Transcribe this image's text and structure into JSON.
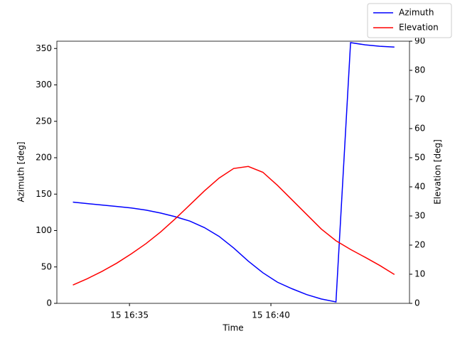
{
  "chart_data": {
    "type": "line",
    "xlabel": "Time",
    "ylabel": "Azimuth [deg]",
    "y2label": "Elevation [deg]",
    "x": [
      "15 16:33:00",
      "15 16:33:31",
      "15 16:34:02",
      "15 16:34:33",
      "15 16:35:04",
      "15 16:35:35",
      "15 16:36:06",
      "15 16:36:37",
      "15 16:37:08",
      "15 16:37:39",
      "15 16:38:10",
      "15 16:38:41",
      "15 16:39:12",
      "15 16:39:43",
      "15 16:40:14",
      "15 16:40:45",
      "15 16:41:16",
      "15 16:41:47",
      "15 16:42:18",
      "15 16:42:49",
      "15 16:43:20",
      "15 16:43:51",
      "15 16:44:22"
    ],
    "xlim": [
      "15 16:32:26",
      "15 16:44:54"
    ],
    "xticks": [
      {
        "value": "15 16:35:00",
        "label": "15 16:35"
      },
      {
        "value": "15 16:40:00",
        "label": "15 16:40"
      }
    ],
    "ylim": [
      0,
      360
    ],
    "yticks": [
      0,
      50,
      100,
      150,
      200,
      250,
      300,
      350
    ],
    "y2lim": [
      0,
      90
    ],
    "y2ticks": [
      0,
      10,
      20,
      30,
      40,
      50,
      60,
      70,
      80,
      90
    ],
    "grid": false,
    "legend": "upper right",
    "series": [
      {
        "name": "Azimuth",
        "color": "#0000ff",
        "values": [
          139,
          137,
          135,
          133,
          131,
          128,
          124,
          119,
          113,
          104,
          92,
          76,
          58,
          42,
          29,
          20,
          12,
          6,
          2,
          358,
          355,
          353,
          352
        ]
      },
      {
        "name": "Elevation",
        "color": "#ff0000",
        "axis": "y2",
        "values": [
          6.3,
          8.5,
          11,
          13.8,
          17,
          20.5,
          24.5,
          29,
          33.8,
          38.6,
          43,
          46.3,
          47,
          45,
          40.5,
          35.5,
          30.5,
          25.5,
          21.5,
          18.5,
          15.8,
          13,
          9.9
        ]
      }
    ]
  }
}
